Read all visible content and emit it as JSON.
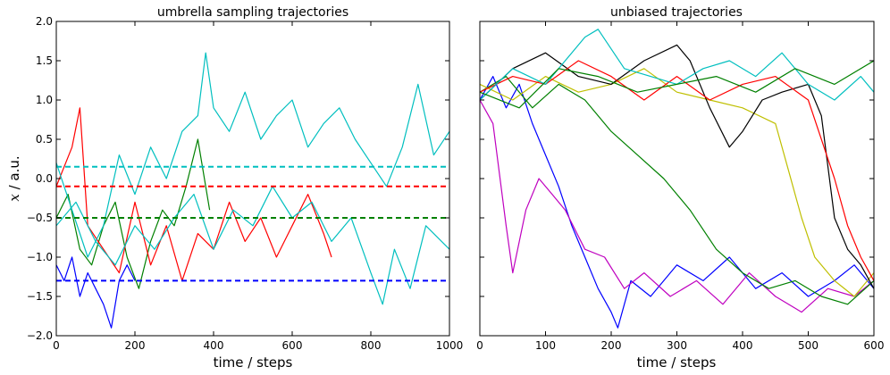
{
  "chart_data": [
    {
      "type": "line",
      "title": "umbrella sampling trajectories",
      "xlabel": "time / steps",
      "ylabel_var": "x",
      "ylabel_rest": " / a.u.",
      "xlim": [
        0,
        1000
      ],
      "ylim": [
        -2.0,
        2.0
      ],
      "xticks": [
        0,
        200,
        400,
        600,
        800,
        1000
      ],
      "yticks": [
        -2.0,
        -1.5,
        -1.0,
        -0.5,
        0.0,
        0.5,
        1.0,
        1.5,
        2.0
      ],
      "xtick_labels": [
        "0",
        "200",
        "400",
        "600",
        "800",
        "1000"
      ],
      "ytick_labels": [
        "−2.0",
        "−1.5",
        "−1.0",
        "−0.5",
        "0.0",
        "0.5",
        "1.0",
        "1.5",
        "2.0"
      ],
      "grid": false,
      "reference_lines": [
        {
          "y": 0.15,
          "color": "#00bfbf",
          "x_start": 0,
          "x_end": 1000
        },
        {
          "y": -0.1,
          "color": "#ff0000",
          "x_start": 0,
          "x_end": 1000
        },
        {
          "y": -0.5,
          "color": "#008000",
          "x_start": 0,
          "x_end": 1000
        },
        {
          "y": -1.3,
          "color": "#0000ff",
          "x_start": 0,
          "x_end": 1000
        }
      ],
      "series": [
        {
          "color": "#0000ff",
          "x": [
            0,
            20,
            40,
            60,
            80,
            100,
            120,
            140,
            160,
            180,
            200
          ],
          "y": [
            -1.1,
            -1.3,
            -1.0,
            -1.5,
            -1.2,
            -1.4,
            -1.6,
            -1.9,
            -1.3,
            -1.1,
            -1.3
          ]
        },
        {
          "color": "#008000",
          "x": [
            0,
            30,
            60,
            90,
            120,
            150,
            180,
            210,
            240,
            270,
            300,
            330,
            360,
            390
          ],
          "y": [
            -0.5,
            -0.2,
            -0.9,
            -1.1,
            -0.6,
            -0.3,
            -1.0,
            -1.4,
            -0.8,
            -0.4,
            -0.6,
            -0.1,
            0.5,
            -0.4
          ]
        },
        {
          "color": "#ff0000",
          "x": [
            0,
            40,
            60,
            80,
            120,
            160,
            200,
            240,
            280,
            320,
            360,
            400,
            440,
            480,
            520,
            560,
            600,
            640,
            680,
            700
          ],
          "y": [
            -0.1,
            0.4,
            0.9,
            -0.6,
            -0.9,
            -1.2,
            -0.3,
            -1.1,
            -0.6,
            -1.3,
            -0.7,
            -0.9,
            -0.3,
            -0.8,
            -0.5,
            -1.0,
            -0.6,
            -0.2,
            -0.7,
            -1.0
          ]
        },
        {
          "color": "#00bfbf",
          "x": [
            0,
            40,
            80,
            120,
            160,
            200,
            240,
            280,
            320,
            360,
            380,
            400,
            440,
            480,
            520,
            560,
            600,
            640,
            680,
            720,
            760,
            800,
            840,
            880,
            920,
            960,
            1000
          ],
          "y": [
            0.2,
            -0.4,
            -1.0,
            -0.6,
            0.3,
            -0.2,
            0.4,
            0.0,
            0.6,
            0.8,
            1.6,
            0.9,
            0.6,
            1.1,
            0.5,
            0.8,
            1.0,
            0.4,
            0.7,
            0.9,
            0.5,
            0.2,
            -0.1,
            0.4,
            1.2,
            0.3,
            0.6
          ]
        },
        {
          "color": "#00bfbf",
          "x": [
            0,
            50,
            100,
            150,
            200,
            250,
            300,
            350,
            400,
            450,
            500,
            550,
            600,
            650,
            700,
            750,
            800,
            830,
            860,
            900,
            940,
            1000
          ],
          "y": [
            -0.6,
            -0.3,
            -0.8,
            -1.1,
            -0.6,
            -0.9,
            -0.5,
            -0.2,
            -0.9,
            -0.4,
            -0.6,
            -0.1,
            -0.5,
            -0.3,
            -0.8,
            -0.5,
            -1.2,
            -1.6,
            -0.9,
            -1.4,
            -0.6,
            -0.9
          ]
        }
      ]
    },
    {
      "type": "line",
      "title": "unbiased trajectories",
      "xlabel": "time / steps",
      "xlim": [
        0,
        600
      ],
      "ylim": [
        -2.0,
        2.0
      ],
      "xticks": [
        0,
        100,
        200,
        300,
        400,
        500,
        600
      ],
      "xtick_labels": [
        "0",
        "100",
        "200",
        "300",
        "400",
        "500",
        "600"
      ],
      "yticks": [
        -2.0,
        -1.5,
        -1.0,
        -0.5,
        0.0,
        0.5,
        1.0,
        1.5,
        2.0
      ],
      "ytick_labels": [],
      "grid": false,
      "series": [
        {
          "color": "#0000ff",
          "x": [
            0,
            20,
            40,
            60,
            80,
            100,
            120,
            140,
            160,
            180,
            200,
            210,
            230,
            260,
            300,
            340,
            380,
            420,
            460,
            500,
            540,
            570,
            600
          ],
          "y": [
            1.0,
            1.3,
            0.9,
            1.2,
            0.7,
            0.3,
            -0.1,
            -0.6,
            -1.0,
            -1.4,
            -1.7,
            -1.9,
            -1.3,
            -1.5,
            -1.1,
            -1.3,
            -1.0,
            -1.4,
            -1.2,
            -1.5,
            -1.3,
            -1.1,
            -1.4
          ]
        },
        {
          "color": "#bf00bf",
          "x": [
            0,
            20,
            40,
            50,
            70,
            90,
            110,
            130,
            160,
            190,
            220,
            250,
            290,
            330,
            370,
            410,
            450,
            490,
            530,
            570,
            600
          ],
          "y": [
            1.0,
            0.7,
            -0.6,
            -1.2,
            -0.4,
            0.0,
            -0.2,
            -0.4,
            -0.9,
            -1.0,
            -1.4,
            -1.2,
            -1.5,
            -1.3,
            -1.6,
            -1.2,
            -1.5,
            -1.7,
            -1.4,
            -1.5,
            -1.3
          ]
        },
        {
          "color": "#008000",
          "x": [
            0,
            40,
            80,
            120,
            160,
            200,
            240,
            280,
            320,
            360,
            400,
            440,
            480,
            520,
            560,
            600
          ],
          "y": [
            1.1,
            1.3,
            0.9,
            1.2,
            1.0,
            0.6,
            0.3,
            0.0,
            -0.4,
            -0.9,
            -1.2,
            -1.4,
            -1.3,
            -1.5,
            -1.6,
            -1.3
          ]
        },
        {
          "color": "#bfbf00",
          "x": [
            0,
            50,
            100,
            150,
            200,
            250,
            300,
            350,
            400,
            450,
            470,
            490,
            510,
            540,
            570,
            600
          ],
          "y": [
            1.2,
            1.0,
            1.3,
            1.1,
            1.2,
            1.4,
            1.1,
            1.0,
            0.9,
            0.7,
            0.1,
            -0.5,
            -1.0,
            -1.3,
            -1.5,
            -1.2
          ]
        },
        {
          "color": "#000000",
          "x": [
            0,
            50,
            100,
            150,
            200,
            250,
            300,
            320,
            350,
            380,
            400,
            430,
            460,
            500,
            520,
            540,
            560,
            580,
            600
          ],
          "y": [
            1.0,
            1.4,
            1.6,
            1.3,
            1.2,
            1.5,
            1.7,
            1.5,
            0.9,
            0.4,
            0.6,
            1.0,
            1.1,
            1.2,
            0.8,
            -0.5,
            -0.9,
            -1.1,
            -1.4
          ]
        },
        {
          "color": "#ff0000",
          "x": [
            0,
            50,
            100,
            150,
            200,
            250,
            300,
            350,
            400,
            450,
            500,
            540,
            560,
            580,
            600
          ],
          "y": [
            1.1,
            1.3,
            1.2,
            1.5,
            1.3,
            1.0,
            1.3,
            1.0,
            1.2,
            1.3,
            1.0,
            0.0,
            -0.6,
            -1.0,
            -1.3
          ]
        },
        {
          "color": "#00bfbf",
          "x": [
            0,
            50,
            100,
            130,
            160,
            180,
            220,
            260,
            300,
            340,
            380,
            420,
            460,
            500,
            540,
            580,
            600
          ],
          "y": [
            1.0,
            1.4,
            1.2,
            1.5,
            1.8,
            1.9,
            1.4,
            1.3,
            1.2,
            1.4,
            1.5,
            1.3,
            1.6,
            1.2,
            1.0,
            1.3,
            1.1
          ]
        },
        {
          "color": "#008000",
          "x": [
            0,
            60,
            120,
            180,
            240,
            300,
            360,
            420,
            480,
            540,
            600
          ],
          "y": [
            1.1,
            0.9,
            1.4,
            1.3,
            1.1,
            1.2,
            1.3,
            1.1,
            1.4,
            1.2,
            1.5
          ]
        }
      ]
    }
  ]
}
